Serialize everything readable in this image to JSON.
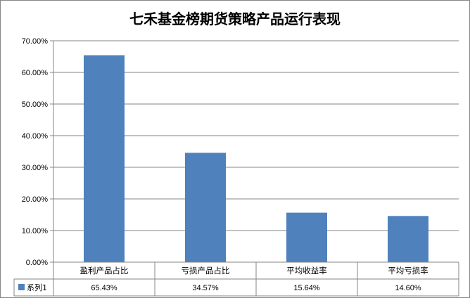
{
  "chart_data": {
    "type": "bar",
    "title": "七禾基金榜期货策略产品运行表现",
    "categories": [
      "盈利产品占比",
      "亏损产品占比",
      "平均收益率",
      "平均亏损率"
    ],
    "series": [
      {
        "name": "系列1",
        "values": [
          65.43,
          34.57,
          15.64,
          14.6
        ]
      }
    ],
    "value_labels": [
      "65.43%",
      "34.57%",
      "15.64%",
      "14.60%"
    ],
    "yticks": [
      "0.00%",
      "10.00%",
      "20.00%",
      "30.00%",
      "40.00%",
      "50.00%",
      "60.00%",
      "70.00%"
    ],
    "ylim": [
      0,
      70
    ],
    "grid": true,
    "legend": "data-table-left",
    "bar_color": "#4F81BD",
    "axis_color": "#868686",
    "grid_color": "#868686"
  }
}
